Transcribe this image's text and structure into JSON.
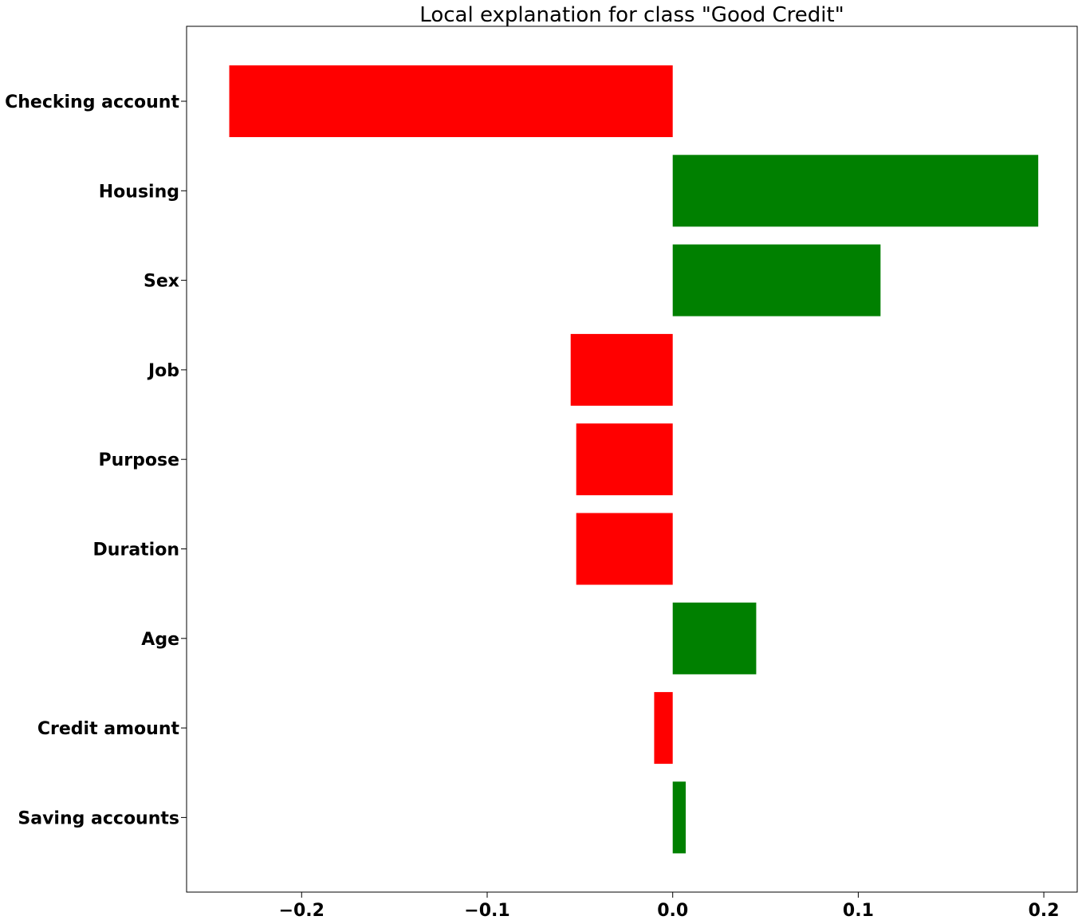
{
  "chart_data": {
    "type": "bar",
    "orientation": "horizontal",
    "title": "Local explanation for class \"Good Credit\"",
    "xlabel": "",
    "ylabel": "",
    "xlim": [
      -0.262,
      0.218
    ],
    "xticks": [
      -0.2,
      -0.1,
      0.0,
      0.1,
      0.2
    ],
    "xtick_labels": [
      "−0.2",
      "−0.1",
      "0.0",
      "0.1",
      "0.2"
    ],
    "grid": false,
    "categories": [
      "Checking account",
      "Housing",
      "Sex",
      "Job",
      "Purpose",
      "Duration",
      "Age",
      "Credit amount",
      "Saving accounts"
    ],
    "values": [
      -0.239,
      0.197,
      0.112,
      -0.055,
      -0.052,
      -0.052,
      0.045,
      -0.01,
      0.007
    ],
    "colors": {
      "positive": "#008000",
      "negative": "#ff0000"
    }
  }
}
